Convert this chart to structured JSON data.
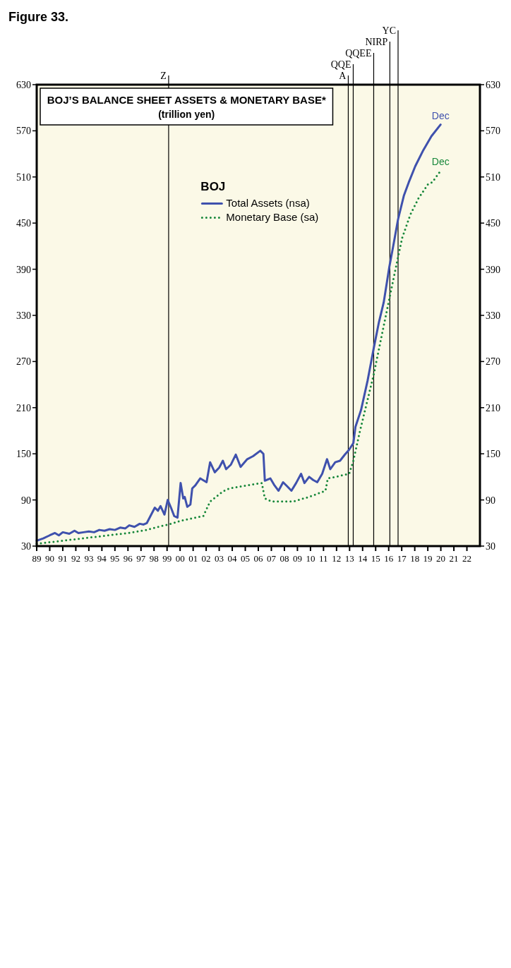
{
  "chart_data": {
    "type": "line",
    "title": "BOJ’S BALANCE SHEET ASSETS & MONETARY BASE*",
    "subtitle": "(trillion yen)",
    "legend_title": "BOJ",
    "legend": "top",
    "grid": false,
    "annotations": [
      "Figure 33.",
      {
        "text": "Dec",
        "x": 2019.98,
        "y": 578
      },
      {
        "text": "Dec",
        "x": 2019.98,
        "y": 518
      }
    ],
    "xlim": [
      1989,
      2023
    ],
    "xticks": [
      {
        "value": 1989,
        "label": "89"
      },
      {
        "value": 1990,
        "label": "90"
      },
      {
        "value": 1991,
        "label": "91"
      },
      {
        "value": 1992,
        "label": "92"
      },
      {
        "value": 1993,
        "label": "93"
      },
      {
        "value": 1994,
        "label": "94"
      },
      {
        "value": 1995,
        "label": "95"
      },
      {
        "value": 1996,
        "label": "96"
      },
      {
        "value": 1997,
        "label": "97"
      },
      {
        "value": 1998,
        "label": "98"
      },
      {
        "value": 1999,
        "label": "99"
      },
      {
        "value": 2000,
        "label": "00"
      },
      {
        "value": 2001,
        "label": "01"
      },
      {
        "value": 2002,
        "label": "02"
      },
      {
        "value": 2003,
        "label": "03"
      },
      {
        "value": 2004,
        "label": "04"
      },
      {
        "value": 2005,
        "label": "05"
      },
      {
        "value": 2006,
        "label": "06"
      },
      {
        "value": 2007,
        "label": "07"
      },
      {
        "value": 2008,
        "label": "08"
      },
      {
        "value": 2009,
        "label": "09"
      },
      {
        "value": 2010,
        "label": "10"
      },
      {
        "value": 2011,
        "label": "11"
      },
      {
        "value": 2012,
        "label": "12"
      },
      {
        "value": 2013,
        "label": "13"
      },
      {
        "value": 2014,
        "label": "14"
      },
      {
        "value": 2015,
        "label": "15"
      },
      {
        "value": 2016,
        "label": "16"
      },
      {
        "value": 2017,
        "label": "17"
      },
      {
        "value": 2018,
        "label": "18"
      },
      {
        "value": 2019,
        "label": "19"
      },
      {
        "value": 2020,
        "label": "20"
      },
      {
        "value": 2021,
        "label": "21"
      },
      {
        "value": 2022,
        "label": "22"
      }
    ],
    "ylim": [
      30,
      630
    ],
    "yticks": [
      30,
      90,
      150,
      210,
      270,
      330,
      390,
      450,
      510,
      570,
      630
    ],
    "y2lim": [
      30,
      630
    ],
    "y2ticks": [
      30,
      90,
      150,
      210,
      270,
      330,
      390,
      450,
      510,
      570,
      630
    ],
    "ref_lines": [
      {
        "axis": "x",
        "value": 1999.12,
        "label": "Z"
      },
      {
        "axis": "x",
        "value": 2012.9,
        "label": "A"
      },
      {
        "axis": "x",
        "value": 2013.28,
        "label": "QQE"
      },
      {
        "axis": "x",
        "value": 2014.85,
        "label": "QQEE"
      },
      {
        "axis": "x",
        "value": 2016.09,
        "label": "NIRP"
      },
      {
        "axis": "x",
        "value": 2016.72,
        "label": "YC"
      }
    ],
    "series": [
      {
        "name": "Total Assets (nsa)",
        "color": "#3f51ad",
        "line_style": "solid",
        "x": [
          1989.0,
          1989.5,
          1990.0,
          1990.4,
          1990.7,
          1991.0,
          1991.5,
          1991.9,
          1992.2,
          1992.6,
          1993.0,
          1993.4,
          1993.8,
          1994.2,
          1994.6,
          1995.0,
          1995.4,
          1995.8,
          1996.1,
          1996.5,
          1996.9,
          1997.2,
          1997.45,
          1998.06,
          1998.3,
          1998.5,
          1998.8,
          1999.05,
          1999.3,
          1999.55,
          1999.8,
          2000.04,
          2000.24,
          2000.35,
          2000.55,
          2000.79,
          2000.93,
          2001.17,
          2001.54,
          2002.03,
          2002.3,
          2002.66,
          2003.0,
          2003.28,
          2003.53,
          2003.9,
          2004.27,
          2004.64,
          2005.15,
          2005.6,
          2006.15,
          2006.39,
          2006.5,
          2006.92,
          2007.2,
          2007.55,
          2007.9,
          2008.2,
          2008.54,
          2008.9,
          2009.28,
          2009.54,
          2009.9,
          2010.2,
          2010.52,
          2010.9,
          2011.27,
          2011.52,
          2011.9,
          2012.27,
          2012.64,
          2012.95,
          2013.29,
          2013.45,
          2013.88,
          2014.38,
          2014.85,
          2015.25,
          2015.62,
          2016.05,
          2016.4,
          2016.72,
          2017.17,
          2017.54,
          2018.04,
          2018.66,
          2019.28,
          2019.98
        ],
        "values": [
          37,
          40,
          44,
          47,
          44,
          48,
          46,
          50,
          47,
          48,
          49,
          48,
          51,
          50,
          52,
          51,
          54,
          53,
          57,
          55,
          59,
          58,
          60,
          80,
          76,
          82,
          71,
          90,
          80,
          69,
          67,
          112,
          92,
          94,
          81,
          84,
          105,
          109,
          118,
          113,
          139,
          126,
          132,
          141,
          130,
          136,
          149,
          133,
          143,
          147,
          154,
          150,
          115,
          118,
          110,
          102,
          113,
          108,
          102,
          112,
          124,
          112,
          120,
          116,
          113,
          124,
          143,
          130,
          139,
          141,
          149,
          155,
          164,
          185,
          207,
          245,
          287,
          321,
          347,
          393,
          425,
          455,
          486,
          503,
          524,
          545,
          563,
          578
        ]
      },
      {
        "name": "Monetary Base (sa)",
        "color": "#17873a",
        "line_style": "dotted",
        "x": [
          1989.0,
          1990,
          1991,
          1992,
          1993,
          1994,
          1995,
          1996,
          1997.43,
          1998.3,
          1999.05,
          1999.7,
          2000.04,
          2000.9,
          2001.78,
          2002.3,
          2003.28,
          2003.78,
          2005.15,
          2006.27,
          2006.5,
          2007.0,
          2008.67,
          2009.9,
          2011.15,
          2011.33,
          2011.9,
          2012.97,
          2013.29,
          2013.76,
          2014.85,
          2015.37,
          2016.09,
          2016.72,
          2017.04,
          2017.66,
          2018.28,
          2019.03,
          2019.34,
          2019.98
        ],
        "values": [
          33,
          35,
          37,
          39,
          41,
          43,
          45,
          47,
          51,
          55,
          58,
          61,
          63,
          66,
          69,
          88,
          101,
          105,
          109,
          112,
          92,
          88,
          88,
          94,
          102,
          118,
          120,
          124,
          141,
          177,
          253,
          296,
          355,
          406,
          431,
          461,
          482,
          501,
          503,
          518
        ]
      }
    ]
  }
}
